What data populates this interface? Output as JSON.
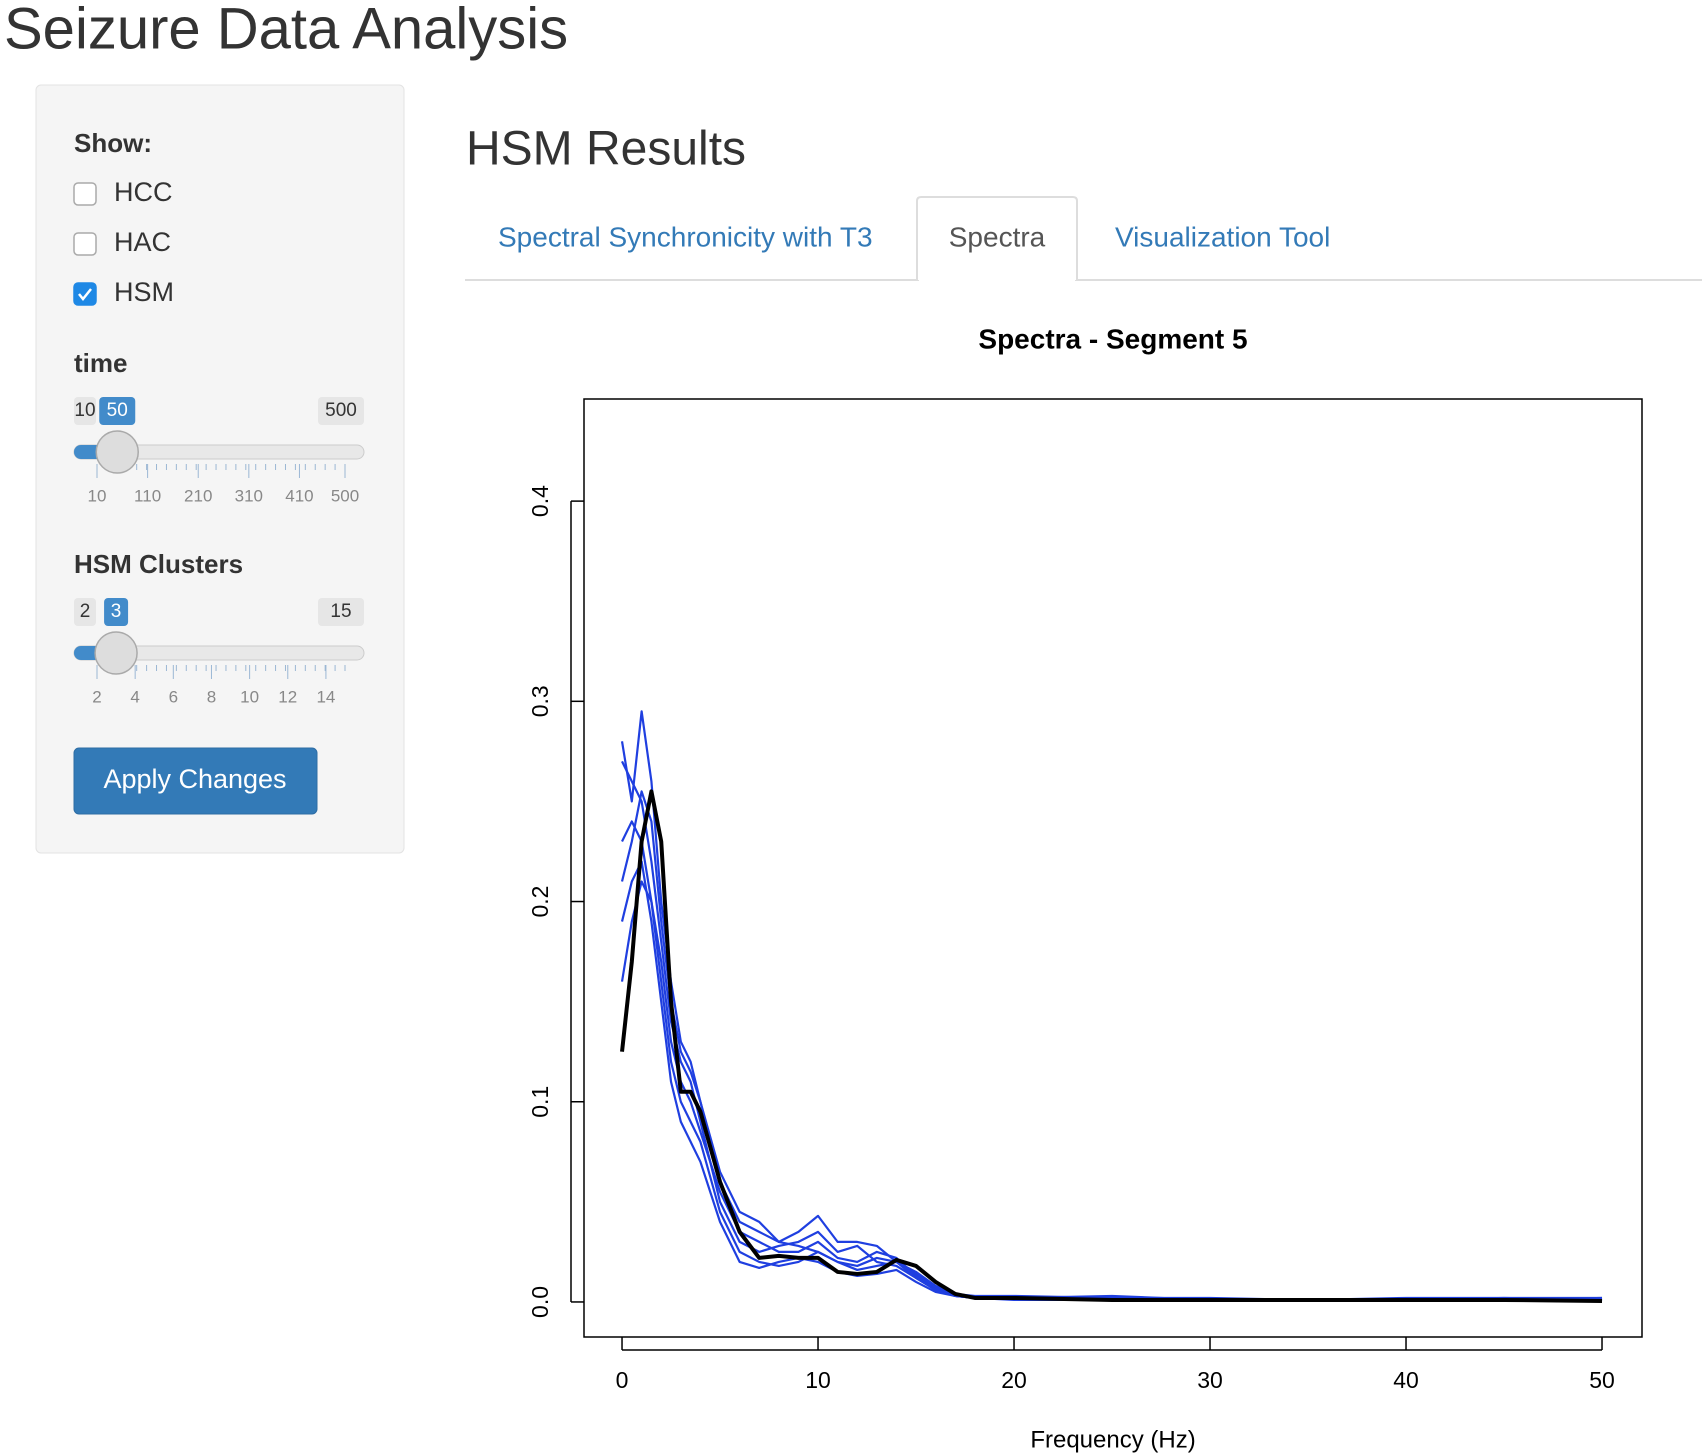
{
  "header": {
    "title": "Seizure Data Analysis"
  },
  "sidebar": {
    "show_label": "Show:",
    "checkboxes": [
      {
        "label": "HCC",
        "checked": false
      },
      {
        "label": "HAC",
        "checked": false
      },
      {
        "label": "HSM",
        "checked": true
      }
    ],
    "time_slider": {
      "label": "time",
      "min": 10,
      "max": 500,
      "value": 50,
      "ticks": [
        10,
        110,
        210,
        310,
        410,
        500
      ]
    },
    "clusters_slider": {
      "label": "HSM Clusters",
      "min": 2,
      "max": 15,
      "value": 3,
      "ticks": [
        2,
        4,
        6,
        8,
        10,
        12,
        14
      ]
    },
    "button": "Apply Changes"
  },
  "main": {
    "title": "HSM Results",
    "tabs": [
      "Spectral Synchronicity with T3",
      "Spectra",
      "Visualization Tool"
    ],
    "active_tab": 1
  },
  "chart_data": {
    "type": "line",
    "title": "Spectra - Segment 5",
    "x_label": "Frequency (Hz)",
    "x": [
      0,
      0.5,
      1,
      1.5,
      2,
      2.5,
      3,
      3.5,
      4,
      5,
      6,
      7,
      8,
      9,
      10,
      11,
      12,
      13,
      14,
      15,
      16,
      17,
      18,
      20,
      25,
      30,
      35,
      40,
      45,
      50
    ],
    "series": [
      {
        "color": "#1f3fe0",
        "values": [
          0.28,
          0.25,
          0.295,
          0.26,
          0.2,
          0.16,
          0.13,
          0.12,
          0.1,
          0.06,
          0.04,
          0.035,
          0.03,
          0.035,
          0.043,
          0.03,
          0.03,
          0.028,
          0.02,
          0.015,
          0.008,
          0.004,
          0.003,
          0.003,
          0.002,
          0.002,
          0.001,
          0.002,
          0.002,
          0.001
        ]
      },
      {
        "color": "#1f3fe0",
        "values": [
          0.27,
          0.26,
          0.25,
          0.22,
          0.18,
          0.14,
          0.12,
          0.11,
          0.09,
          0.05,
          0.03,
          0.025,
          0.028,
          0.03,
          0.035,
          0.025,
          0.028,
          0.02,
          0.018,
          0.012,
          0.006,
          0.003,
          0.002,
          0.002,
          0.003,
          0.001,
          0.001,
          0.001,
          0.002,
          0.002
        ]
      },
      {
        "color": "#1f3fe0",
        "values": [
          0.23,
          0.24,
          0.23,
          0.2,
          0.16,
          0.12,
          0.1,
          0.09,
          0.08,
          0.045,
          0.025,
          0.02,
          0.018,
          0.02,
          0.025,
          0.02,
          0.016,
          0.018,
          0.02,
          0.014,
          0.007,
          0.003,
          0.002,
          0.002,
          0.001,
          0.001,
          0.001,
          0.001,
          0.001,
          0.001
        ]
      },
      {
        "color": "#1f3fe0",
        "values": [
          0.19,
          0.21,
          0.22,
          0.19,
          0.15,
          0.11,
          0.09,
          0.08,
          0.07,
          0.04,
          0.02,
          0.017,
          0.02,
          0.022,
          0.02,
          0.015,
          0.013,
          0.014,
          0.016,
          0.01,
          0.005,
          0.003,
          0.002,
          0.001,
          0.001,
          0.001,
          0.001,
          0.001,
          0.001,
          0.001
        ]
      },
      {
        "color": "#1f3fe0",
        "values": [
          0.16,
          0.19,
          0.21,
          0.2,
          0.17,
          0.13,
          0.11,
          0.1,
          0.085,
          0.055,
          0.035,
          0.03,
          0.025,
          0.025,
          0.03,
          0.022,
          0.02,
          0.025,
          0.022,
          0.013,
          0.006,
          0.003,
          0.002,
          0.002,
          0.001,
          0.001,
          0.001,
          0.001,
          0.001,
          0.001
        ]
      },
      {
        "color": "#1f3fe0",
        "values": [
          0.21,
          0.23,
          0.255,
          0.24,
          0.19,
          0.15,
          0.125,
          0.115,
          0.1,
          0.065,
          0.045,
          0.04,
          0.03,
          0.028,
          0.025,
          0.02,
          0.018,
          0.022,
          0.02,
          0.012,
          0.006,
          0.003,
          0.002,
          0.002,
          0.002,
          0.001,
          0.001,
          0.001,
          0.001,
          0.002
        ]
      },
      {
        "color": "#000000",
        "values": [
          0.125,
          0.17,
          0.23,
          0.255,
          0.23,
          0.15,
          0.105,
          0.105,
          0.095,
          0.06,
          0.035,
          0.022,
          0.023,
          0.022,
          0.022,
          0.015,
          0.014,
          0.015,
          0.021,
          0.018,
          0.01,
          0.004,
          0.002,
          0.002,
          0.001,
          0.001,
          0.001,
          0.001,
          0.001,
          0.0005
        ]
      }
    ],
    "xlim": [
      -1.94,
      52.04
    ],
    "ylim": [
      -0.0175,
      0.451
    ],
    "xticks": [
      0,
      10,
      20,
      30,
      40,
      50
    ],
    "yticks": [
      {
        "value": 0,
        "label": "0.0"
      },
      0.1,
      0.2,
      0.3,
      0.4
    ]
  }
}
